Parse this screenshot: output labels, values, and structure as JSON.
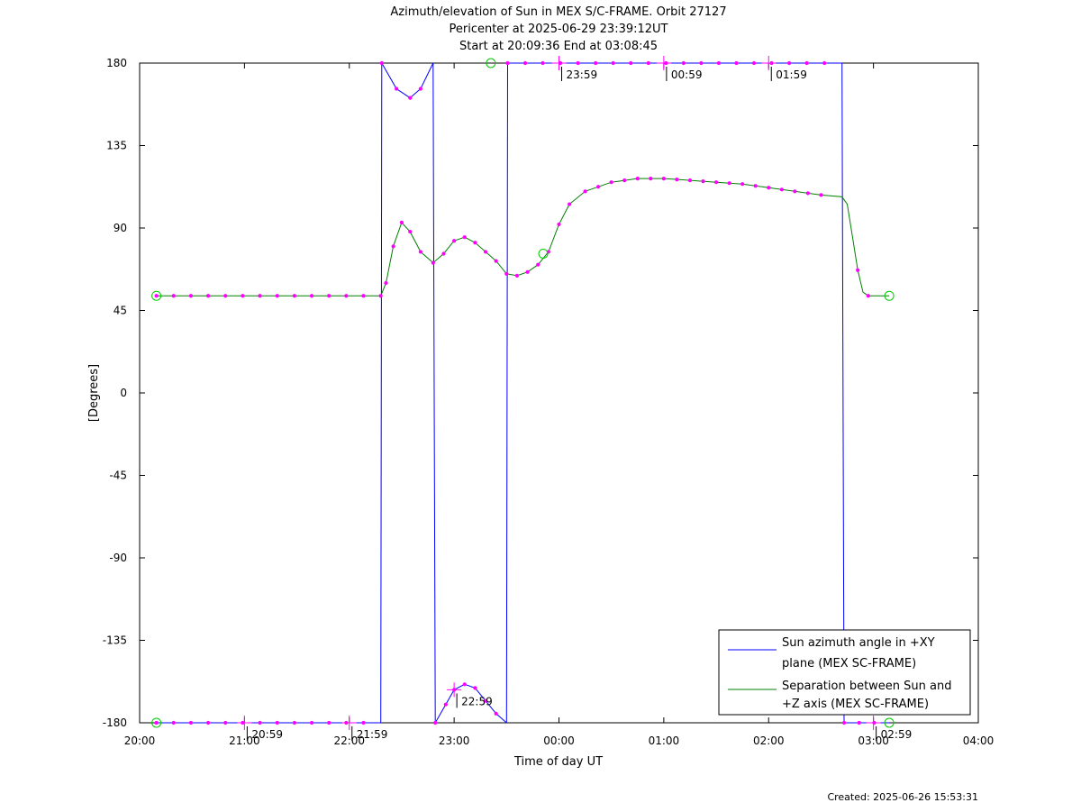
{
  "chart_data": {
    "type": "line",
    "title_lines": [
      "Azimuth/elevation of Sun in MEX S/C-FRAME.  Orbit 27127",
      "Pericenter at 2025-06-29 23:39:12UT",
      "Start at 20:09:36 End at 03:08:45"
    ],
    "xlabel": "Time of day UT",
    "ylabel": "[Degrees]",
    "x_unit": "hours since 20:00 UT",
    "xlim": [
      0,
      8
    ],
    "ylim": [
      -180,
      180
    ],
    "x_ticks": [
      {
        "v": 0,
        "label": "20:00"
      },
      {
        "v": 1,
        "label": "21:00"
      },
      {
        "v": 2,
        "label": "22:00"
      },
      {
        "v": 3,
        "label": "23:00"
      },
      {
        "v": 4,
        "label": "00:00"
      },
      {
        "v": 5,
        "label": "01:00"
      },
      {
        "v": 6,
        "label": "02:00"
      },
      {
        "v": 7,
        "label": "03:00"
      },
      {
        "v": 8,
        "label": "04:00"
      }
    ],
    "y_ticks": [
      {
        "v": 180,
        "label": "180"
      },
      {
        "v": 135,
        "label": "135"
      },
      {
        "v": 90,
        "label": "90"
      },
      {
        "v": 45,
        "label": "45"
      },
      {
        "v": 0,
        "label": "0"
      },
      {
        "v": -45,
        "label": "-45"
      },
      {
        "v": -90,
        "label": "-90"
      },
      {
        "v": -135,
        "label": "-135"
      },
      {
        "v": -180,
        "label": "-180"
      }
    ],
    "grid": false,
    "legend_position": "bottom-right",
    "series": [
      {
        "name": "Sun azimuth angle in +XY plane (MEX SC-FRAME)",
        "legend_lines": [
          "Sun azimuth angle in +XY",
          "plane (MEX SC-FRAME)"
        ],
        "color": "#0000ff",
        "segments": [
          [
            [
              0.16,
              -180
            ],
            [
              2.3,
              -180
            ]
          ],
          [
            [
              2.3,
              -180
            ],
            [
              2.31,
              180
            ]
          ],
          [
            [
              2.31,
              180
            ],
            [
              2.45,
              166
            ],
            [
              2.58,
              161
            ],
            [
              2.68,
              166
            ],
            [
              2.8,
              180
            ]
          ],
          [
            [
              2.8,
              180
            ],
            [
              2.82,
              -180
            ]
          ],
          [
            [
              2.82,
              -180
            ],
            [
              2.92,
              -170
            ],
            [
              3.0,
              -162
            ],
            [
              3.1,
              -159
            ],
            [
              3.2,
              -161
            ],
            [
              3.3,
              -168
            ],
            [
              3.4,
              -175
            ],
            [
              3.5,
              -180
            ]
          ],
          [
            [
              3.5,
              -180
            ],
            [
              3.51,
              180
            ]
          ],
          [
            [
              3.51,
              180
            ],
            [
              6.7,
              180
            ]
          ],
          [
            [
              6.7,
              180
            ],
            [
              6.72,
              -180
            ]
          ],
          [
            [
              6.72,
              -180
            ],
            [
              7.15,
              -180
            ]
          ]
        ]
      },
      {
        "name": "Separation between Sun and +Z axis (MEX SC-FRAME)",
        "legend_lines": [
          "Separation between Sun and",
          "+Z axis (MEX SC-FRAME)"
        ],
        "color": "#008000",
        "points": [
          [
            0.16,
            53
          ],
          [
            2.3,
            53
          ],
          [
            2.35,
            60
          ],
          [
            2.42,
            80
          ],
          [
            2.5,
            93
          ],
          [
            2.58,
            88
          ],
          [
            2.68,
            77
          ],
          [
            2.8,
            71
          ],
          [
            2.9,
            76
          ],
          [
            3.0,
            83
          ],
          [
            3.1,
            85
          ],
          [
            3.2,
            82
          ],
          [
            3.3,
            77
          ],
          [
            3.4,
            72
          ],
          [
            3.5,
            65
          ],
          [
            3.6,
            64
          ],
          [
            3.7,
            66
          ],
          [
            3.8,
            70
          ],
          [
            3.9,
            77
          ],
          [
            4.0,
            92
          ],
          [
            4.1,
            103
          ],
          [
            4.25,
            110
          ],
          [
            4.5,
            115
          ],
          [
            4.75,
            117
          ],
          [
            5.0,
            117
          ],
          [
            5.25,
            116
          ],
          [
            5.5,
            115
          ],
          [
            5.75,
            114
          ],
          [
            6.0,
            112
          ],
          [
            6.25,
            110
          ],
          [
            6.5,
            108
          ],
          [
            6.7,
            107
          ],
          [
            6.75,
            103
          ],
          [
            6.8,
            85
          ],
          [
            6.85,
            67
          ],
          [
            6.9,
            55
          ],
          [
            6.95,
            53
          ],
          [
            7.15,
            53
          ]
        ]
      }
    ],
    "markers": {
      "circles": [
        [
          0.16,
          53
        ],
        [
          0.16,
          -180
        ],
        [
          3.35,
          180
        ],
        [
          3.85,
          76
        ],
        [
          7.15,
          53
        ],
        [
          7.15,
          -180
        ]
      ]
    },
    "annotations": [
      {
        "x": 1.0,
        "y": -180,
        "label": "20:59"
      },
      {
        "x": 2.0,
        "y": -180,
        "label": "21:59"
      },
      {
        "x": 3.0,
        "y": -162,
        "label": "22:59"
      },
      {
        "x": 4.0,
        "y": 180,
        "label": "23:59"
      },
      {
        "x": 5.0,
        "y": 180,
        "label": "00:59"
      },
      {
        "x": 6.0,
        "y": 180,
        "label": "01:59"
      },
      {
        "x": 7.0,
        "y": -180,
        "label": "02:59"
      }
    ],
    "created_label": "Created: 2025-06-26 15:53:31"
  }
}
